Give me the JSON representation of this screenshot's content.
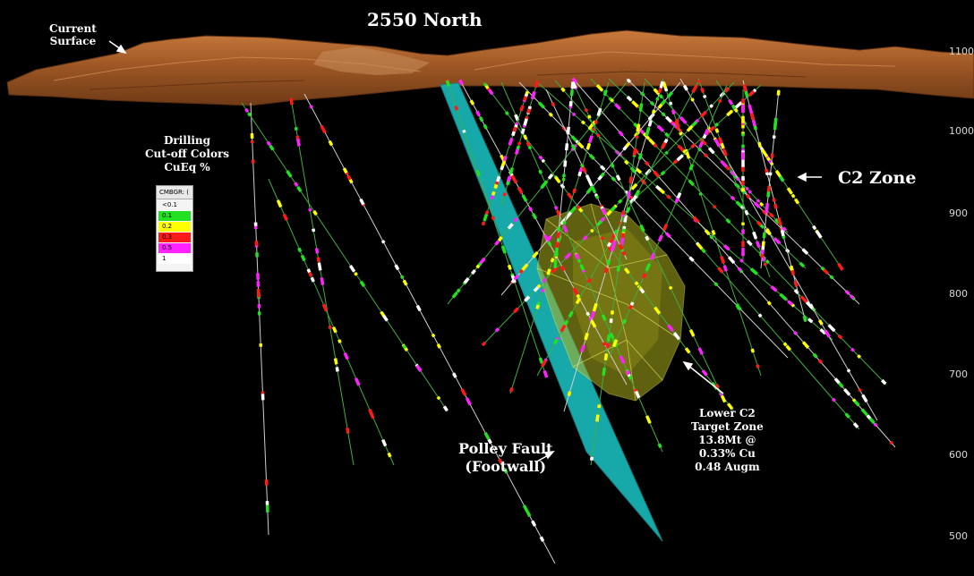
{
  "title": "2550 North",
  "labels": {
    "current_surface": [
      "Current",
      "Surface"
    ],
    "drilling_legend_title": [
      "Drilling",
      "Cut-off Colors",
      "CuEq %"
    ],
    "c2_zone": "C2 Zone",
    "polley_fault": [
      "Polley Fault",
      "(Footwall)"
    ],
    "lower_target": [
      "Lower C2",
      "Target Zone",
      "13.8Mt @",
      "0.33% Cu",
      "0.48 Augm"
    ]
  },
  "legend": {
    "header": "CMBGR: (",
    "rows": [
      {
        "label": "<0.1",
        "color": "#f4f4f4"
      },
      {
        "label": "0.1",
        "color": "#22e022"
      },
      {
        "label": "0.2",
        "color": "#ffff00"
      },
      {
        "label": "0.3",
        "color": "#ff1a1a"
      },
      {
        "label": "0.5",
        "color": "#ff22ff"
      },
      {
        "label": "1",
        "color": "#ffffff"
      }
    ]
  },
  "elevations": [
    "1100",
    "1000",
    "900",
    "800",
    "700",
    "600",
    "500"
  ],
  "colors": {
    "surface": "#a8612c",
    "fault": "#19b3b3",
    "target_zone": "#b0b020",
    "background": "#000000"
  }
}
